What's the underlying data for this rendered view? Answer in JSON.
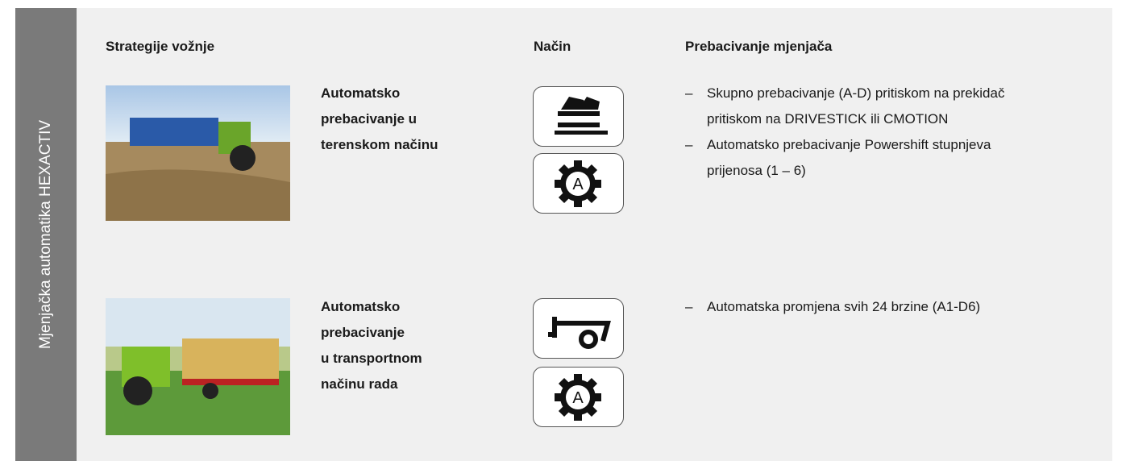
{
  "side_label": "Mjenjačka automatika HEXACTIV",
  "headers": [
    "Strategije vožnje",
    "Način",
    "Prebacivanje mjenjača"
  ],
  "rows": [
    {
      "label_lines": [
        "Automatsko",
        "prebacivanje u",
        "terenskom načinu"
      ],
      "bullets": [
        "Skupno prebacivanje (A-D) pritiskom na prekidač pritiskom na DRIVESTICK ili CMOTION",
        "Automatsko prebacivanje Powershift stupnjeva prijenosa (1 – 6)"
      ]
    },
    {
      "label_lines": [
        "Automatsko",
        "prebacivanje",
        "u transportnom",
        "načinu rada"
      ],
      "bullets": [
        "Automatska promjena svih 24 brzine (A1-D6)"
      ]
    }
  ]
}
